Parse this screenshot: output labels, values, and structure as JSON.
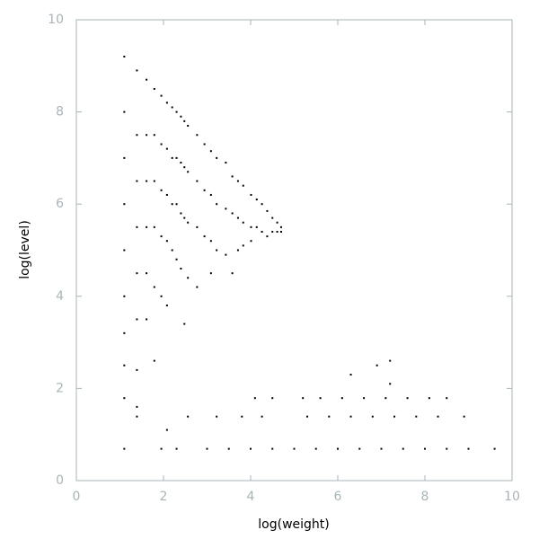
{
  "chart_data": {
    "type": "scatter",
    "x_label": "log(weight)",
    "y_label": "log(level)",
    "xlim": [
      0,
      10
    ],
    "ylim": [
      0,
      10
    ],
    "xticks": [
      0,
      2,
      4,
      6,
      8,
      10
    ],
    "yticks": [
      0,
      2,
      4,
      6,
      8,
      10
    ],
    "color": "#000000",
    "axis_color": "#a8b4b8",
    "x": [
      1.1,
      1.1,
      1.1,
      1.1,
      1.1,
      1.1,
      1.1,
      1.1,
      1.39,
      1.39,
      1.39,
      1.39,
      1.39,
      1.39,
      1.39,
      1.61,
      1.61,
      1.61,
      1.61,
      1.61,
      1.61,
      1.79,
      1.79,
      1.79,
      1.79,
      1.79,
      1.79,
      1.95,
      1.95,
      1.95,
      1.95,
      1.95,
      2.08,
      2.08,
      2.08,
      2.08,
      2.08,
      2.2,
      2.2,
      2.2,
      2.2,
      2.3,
      2.3,
      2.3,
      2.3,
      2.4,
      2.4,
      2.4,
      2.4,
      2.48,
      2.48,
      2.48,
      2.48,
      2.56,
      2.56,
      2.56,
      2.56,
      2.77,
      2.77,
      2.77,
      2.77,
      2.94,
      2.94,
      2.94,
      3.09,
      3.09,
      3.09,
      3.09,
      3.22,
      3.22,
      3.22,
      3.43,
      3.43,
      3.43,
      3.58,
      3.58,
      3.58,
      3.71,
      3.71,
      3.71,
      3.83,
      3.83,
      3.83,
      4.01,
      4.01,
      4.01,
      4.14,
      4.14,
      4.26,
      4.26,
      4.38,
      4.38,
      4.5,
      4.5,
      4.61,
      4.61,
      4.7,
      4.7,
      1.1,
      1.95,
      2.3,
      3.0,
      3.5,
      4.0,
      4.5,
      5.0,
      5.5,
      6.0,
      6.5,
      7.0,
      7.5,
      8.0,
      8.5,
      9.0,
      9.6,
      1.39,
      2.56,
      3.22,
      3.8,
      4.26,
      5.3,
      5.8,
      6.3,
      6.8,
      7.3,
      7.8,
      8.3,
      8.9,
      1.1,
      4.1,
      4.5,
      5.2,
      5.6,
      6.1,
      6.6,
      7.1,
      7.6,
      8.1,
      8.5,
      6.9,
      7.2,
      6.3,
      7.2,
      2.08,
      1.39
    ],
    "values": [
      9.2,
      8.0,
      7.0,
      6.0,
      5.0,
      4.0,
      3.2,
      2.5,
      8.9,
      7.5,
      6.5,
      5.5,
      4.5,
      3.5,
      2.4,
      8.7,
      7.5,
      6.5,
      5.5,
      4.5,
      3.5,
      8.5,
      7.5,
      6.5,
      5.5,
      4.2,
      2.6,
      8.35,
      7.3,
      6.3,
      5.3,
      4.0,
      8.2,
      7.2,
      6.2,
      5.2,
      3.8,
      8.1,
      7.0,
      6.0,
      5.0,
      8.0,
      7.0,
      6.0,
      4.8,
      7.9,
      6.9,
      5.8,
      4.6,
      7.8,
      6.8,
      5.7,
      3.4,
      7.7,
      6.7,
      5.6,
      4.4,
      7.5,
      6.5,
      5.5,
      4.2,
      7.3,
      6.3,
      5.3,
      7.15,
      6.2,
      5.2,
      4.5,
      7.0,
      6.0,
      5.0,
      6.9,
      5.9,
      4.9,
      6.6,
      5.8,
      4.5,
      6.5,
      5.7,
      5.0,
      6.4,
      5.6,
      5.1,
      6.2,
      5.5,
      5.2,
      6.1,
      5.5,
      6.0,
      5.4,
      5.85,
      5.3,
      5.7,
      5.4,
      5.6,
      5.4,
      5.5,
      5.4,
      0.69,
      0.69,
      0.69,
      0.69,
      0.69,
      0.69,
      0.69,
      0.69,
      0.69,
      0.69,
      0.69,
      0.69,
      0.69,
      0.69,
      0.69,
      0.69,
      0.69,
      1.39,
      1.39,
      1.39,
      1.39,
      1.39,
      1.39,
      1.39,
      1.39,
      1.39,
      1.39,
      1.39,
      1.39,
      1.39,
      1.79,
      1.79,
      1.79,
      1.79,
      1.79,
      1.79,
      1.79,
      1.79,
      1.79,
      1.79,
      1.79,
      2.5,
      2.6,
      2.3,
      2.1,
      1.1,
      1.6
    ]
  }
}
